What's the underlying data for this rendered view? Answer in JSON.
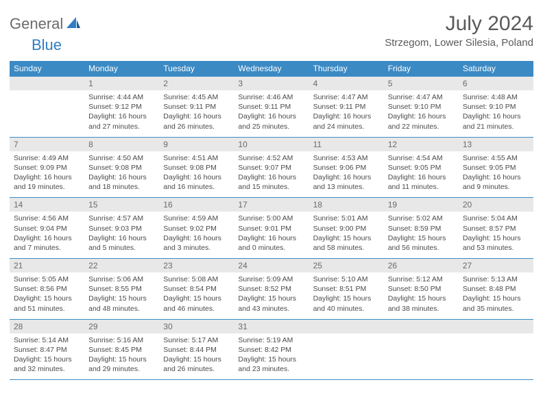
{
  "brand": {
    "part1": "General",
    "part2": "Blue"
  },
  "title": "July 2024",
  "location": "Strzegom, Lower Silesia, Poland",
  "colors": {
    "header_bg": "#3b8ac4",
    "header_fg": "#ffffff",
    "daynum_bg": "#e8e8e8",
    "text": "#4a4a4a",
    "rule": "#3b8ac4",
    "logo_gray": "#6a6a6a",
    "logo_blue": "#2f7dc4"
  },
  "weekdays": [
    "Sunday",
    "Monday",
    "Tuesday",
    "Wednesday",
    "Thursday",
    "Friday",
    "Saturday"
  ],
  "weeks": [
    [
      null,
      {
        "n": "1",
        "sr": "4:44 AM",
        "ss": "9:12 PM",
        "dl": "16 hours and 27 minutes."
      },
      {
        "n": "2",
        "sr": "4:45 AM",
        "ss": "9:11 PM",
        "dl": "16 hours and 26 minutes."
      },
      {
        "n": "3",
        "sr": "4:46 AM",
        "ss": "9:11 PM",
        "dl": "16 hours and 25 minutes."
      },
      {
        "n": "4",
        "sr": "4:47 AM",
        "ss": "9:11 PM",
        "dl": "16 hours and 24 minutes."
      },
      {
        "n": "5",
        "sr": "4:47 AM",
        "ss": "9:10 PM",
        "dl": "16 hours and 22 minutes."
      },
      {
        "n": "6",
        "sr": "4:48 AM",
        "ss": "9:10 PM",
        "dl": "16 hours and 21 minutes."
      }
    ],
    [
      {
        "n": "7",
        "sr": "4:49 AM",
        "ss": "9:09 PM",
        "dl": "16 hours and 19 minutes."
      },
      {
        "n": "8",
        "sr": "4:50 AM",
        "ss": "9:08 PM",
        "dl": "16 hours and 18 minutes."
      },
      {
        "n": "9",
        "sr": "4:51 AM",
        "ss": "9:08 PM",
        "dl": "16 hours and 16 minutes."
      },
      {
        "n": "10",
        "sr": "4:52 AM",
        "ss": "9:07 PM",
        "dl": "16 hours and 15 minutes."
      },
      {
        "n": "11",
        "sr": "4:53 AM",
        "ss": "9:06 PM",
        "dl": "16 hours and 13 minutes."
      },
      {
        "n": "12",
        "sr": "4:54 AM",
        "ss": "9:05 PM",
        "dl": "16 hours and 11 minutes."
      },
      {
        "n": "13",
        "sr": "4:55 AM",
        "ss": "9:05 PM",
        "dl": "16 hours and 9 minutes."
      }
    ],
    [
      {
        "n": "14",
        "sr": "4:56 AM",
        "ss": "9:04 PM",
        "dl": "16 hours and 7 minutes."
      },
      {
        "n": "15",
        "sr": "4:57 AM",
        "ss": "9:03 PM",
        "dl": "16 hours and 5 minutes."
      },
      {
        "n": "16",
        "sr": "4:59 AM",
        "ss": "9:02 PM",
        "dl": "16 hours and 3 minutes."
      },
      {
        "n": "17",
        "sr": "5:00 AM",
        "ss": "9:01 PM",
        "dl": "16 hours and 0 minutes."
      },
      {
        "n": "18",
        "sr": "5:01 AM",
        "ss": "9:00 PM",
        "dl": "15 hours and 58 minutes."
      },
      {
        "n": "19",
        "sr": "5:02 AM",
        "ss": "8:59 PM",
        "dl": "15 hours and 56 minutes."
      },
      {
        "n": "20",
        "sr": "5:04 AM",
        "ss": "8:57 PM",
        "dl": "15 hours and 53 minutes."
      }
    ],
    [
      {
        "n": "21",
        "sr": "5:05 AM",
        "ss": "8:56 PM",
        "dl": "15 hours and 51 minutes."
      },
      {
        "n": "22",
        "sr": "5:06 AM",
        "ss": "8:55 PM",
        "dl": "15 hours and 48 minutes."
      },
      {
        "n": "23",
        "sr": "5:08 AM",
        "ss": "8:54 PM",
        "dl": "15 hours and 46 minutes."
      },
      {
        "n": "24",
        "sr": "5:09 AM",
        "ss": "8:52 PM",
        "dl": "15 hours and 43 minutes."
      },
      {
        "n": "25",
        "sr": "5:10 AM",
        "ss": "8:51 PM",
        "dl": "15 hours and 40 minutes."
      },
      {
        "n": "26",
        "sr": "5:12 AM",
        "ss": "8:50 PM",
        "dl": "15 hours and 38 minutes."
      },
      {
        "n": "27",
        "sr": "5:13 AM",
        "ss": "8:48 PM",
        "dl": "15 hours and 35 minutes."
      }
    ],
    [
      {
        "n": "28",
        "sr": "5:14 AM",
        "ss": "8:47 PM",
        "dl": "15 hours and 32 minutes."
      },
      {
        "n": "29",
        "sr": "5:16 AM",
        "ss": "8:45 PM",
        "dl": "15 hours and 29 minutes."
      },
      {
        "n": "30",
        "sr": "5:17 AM",
        "ss": "8:44 PM",
        "dl": "15 hours and 26 minutes."
      },
      {
        "n": "31",
        "sr": "5:19 AM",
        "ss": "8:42 PM",
        "dl": "15 hours and 23 minutes."
      },
      null,
      null,
      null
    ]
  ],
  "labels": {
    "sunrise": "Sunrise: ",
    "sunset": "Sunset: ",
    "daylight": "Daylight: "
  }
}
